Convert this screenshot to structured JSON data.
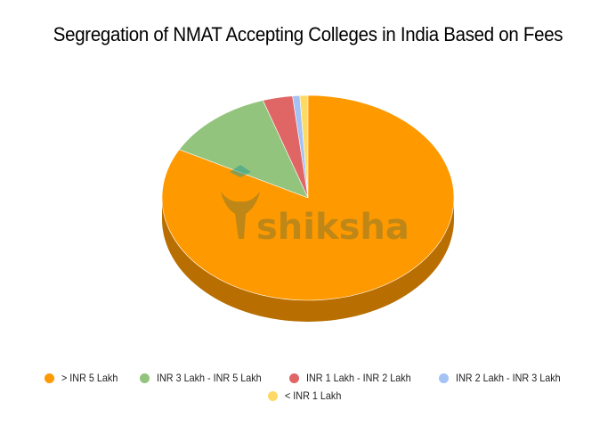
{
  "chart_data": {
    "type": "pie",
    "title": "Segregation of NMAT Accepting Colleges in India Based on Fees",
    "categories": [
      "> INR 5 Lakh",
      "INR 3 Lakh - INR 5 Lakh",
      "INR 1 Lakh - INR 2 Lakh",
      "INR 2 Lakh - INR 3 Lakh",
      "< INR 1 Lakh"
    ],
    "values": [
      82.8,
      12.2,
      3.3,
      0.8,
      0.9
    ],
    "colors": [
      "#ff9900",
      "#93c47d",
      "#e06666",
      "#a4c2f4",
      "#ffd966"
    ],
    "legend_position": "bottom",
    "style": "3d",
    "watermark": "shiksha"
  },
  "title": "Segregation of NMAT Accepting Colleges in India Based on Fees",
  "legend": {
    "items": [
      {
        "label": "> INR 5 Lakh",
        "color": "#ff9900"
      },
      {
        "label": "INR 3 Lakh - INR 5 Lakh",
        "color": "#93c47d"
      },
      {
        "label": "INR 1 Lakh - INR 2 Lakh",
        "color": "#e06666"
      },
      {
        "label": "INR 2 Lakh - INR 3 Lakh",
        "color": "#a4c2f4"
      },
      {
        "label": "< INR 1 Lakh",
        "color": "#ffd966"
      }
    ]
  },
  "watermark": "shiksha"
}
